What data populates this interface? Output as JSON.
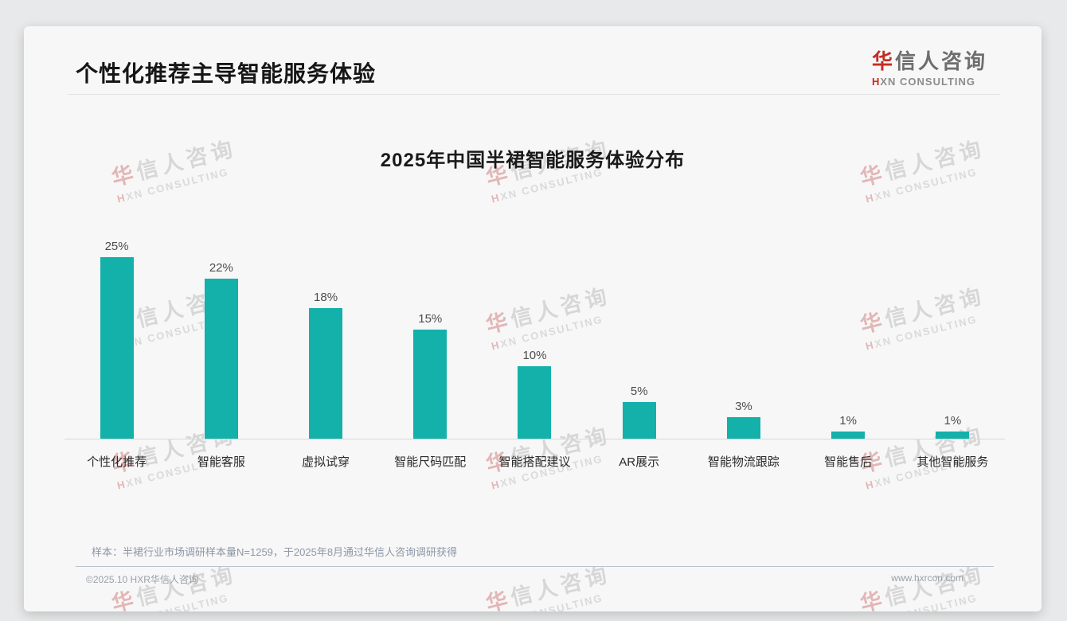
{
  "header": {
    "title": "个性化推荐主导智能服务体验"
  },
  "logo": {
    "cn_first": "华",
    "cn_rest": "信人咨询",
    "en_first": "H",
    "en_rest": "XN CONSULTING"
  },
  "chart_data": {
    "type": "bar",
    "title": "2025年中国半裙智能服务体验分布",
    "categories": [
      "个性化推荐",
      "智能客服",
      "虚拟试穿",
      "智能尺码匹配",
      "智能搭配建议",
      "AR展示",
      "智能物流跟踪",
      "智能售后",
      "其他智能服务"
    ],
    "values": [
      25,
      22,
      18,
      15,
      10,
      5,
      3,
      1,
      1
    ],
    "unit": "%",
    "xlabel": "",
    "ylabel": "",
    "ylim": [
      0,
      30
    ],
    "grid": false,
    "legend": false,
    "bar_color": "#14b0aa"
  },
  "watermark": {
    "line1": "华信人咨询",
    "line2": "HXN CONSULTING"
  },
  "note": "样本：半裙行业市场调研样本量N=1259，于2025年8月通过华信人咨询调研获得",
  "footer": {
    "left": "©2025.10 HXR华信人咨询",
    "right": "www.hxrcon.com"
  },
  "colors": {
    "accent": "#14b0aa",
    "logo_red": "#c72b21",
    "card_bg": "#f7f7f8"
  }
}
